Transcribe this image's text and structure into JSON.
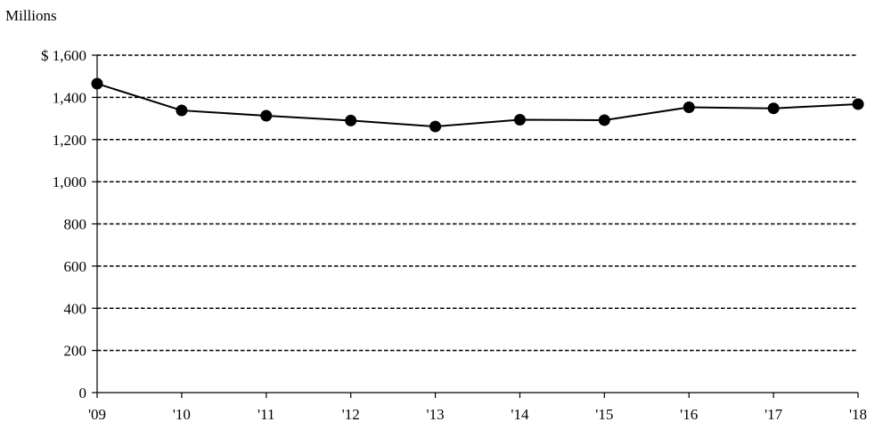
{
  "chart_data": {
    "type": "line",
    "title": "",
    "unit_label": "Millions",
    "xlabel": "",
    "ylabel": "",
    "categories": [
      "'09",
      "'10",
      "'11",
      "'12",
      "'13",
      "'14",
      "'15",
      "'16",
      "'17",
      "'18"
    ],
    "series": [
      {
        "values": [
          1465,
          1338,
          1313,
          1290,
          1262,
          1294,
          1292,
          1353,
          1348,
          1368
        ]
      }
    ],
    "ylim": [
      0,
      1600
    ],
    "yticks": [
      0,
      200,
      400,
      600,
      800,
      1000,
      1200,
      1400,
      1600
    ],
    "ytick_labels": [
      "0",
      "200",
      "400",
      "600",
      "800",
      "1,000",
      "1,200",
      "1,400",
      "$ 1,600"
    ],
    "grid": "horizontal dashed",
    "colors": {
      "line": "#000000",
      "marker": "#000000",
      "grid": "#000000"
    }
  }
}
